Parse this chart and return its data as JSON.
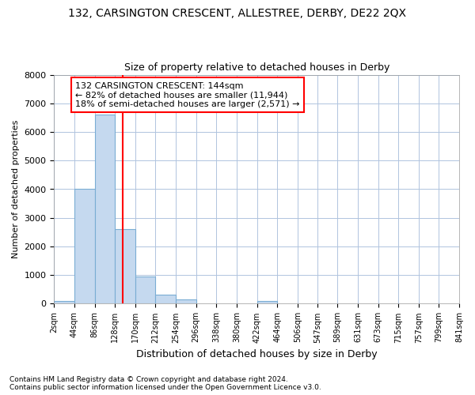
{
  "title1": "132, CARSINGTON CRESCENT, ALLESTREE, DERBY, DE22 2QX",
  "title2": "Size of property relative to detached houses in Derby",
  "xlabel": "Distribution of detached houses by size in Derby",
  "ylabel": "Number of detached properties",
  "footnote1": "Contains HM Land Registry data © Crown copyright and database right 2024.",
  "footnote2": "Contains public sector information licensed under the Open Government Licence v3.0.",
  "annotation_line1": "132 CARSINGTON CRESCENT: 144sqm",
  "annotation_line2": "← 82% of detached houses are smaller (11,944)",
  "annotation_line3": "18% of semi-detached houses are larger (2,571) →",
  "bin_edges": [
    2,
    44,
    86,
    128,
    170,
    212,
    254,
    296,
    338,
    380,
    422,
    464,
    506,
    547,
    589,
    631,
    673,
    715,
    757,
    799,
    841
  ],
  "bar_heights": [
    100,
    4000,
    6600,
    2600,
    950,
    320,
    150,
    0,
    0,
    0,
    100,
    0,
    0,
    0,
    0,
    0,
    0,
    0,
    0,
    0
  ],
  "bar_color": "#c5d9ef",
  "bar_edgecolor": "#7aadd4",
  "red_line_x": 144,
  "ylim": [
    0,
    8000
  ],
  "yticks": [
    0,
    1000,
    2000,
    3000,
    4000,
    5000,
    6000,
    7000,
    8000
  ],
  "tick_labels": [
    "2sqm",
    "44sqm",
    "86sqm",
    "128sqm",
    "170sqm",
    "212sqm",
    "254sqm",
    "296sqm",
    "338sqm",
    "380sqm",
    "422sqm",
    "464sqm",
    "506sqm",
    "547sqm",
    "589sqm",
    "631sqm",
    "673sqm",
    "715sqm",
    "757sqm",
    "799sqm",
    "841sqm"
  ],
  "background_color": "#ffffff",
  "grid_color": "#b0c4de",
  "title1_fontsize": 10,
  "title2_fontsize": 9,
  "annotation_fontsize": 8,
  "xlabel_fontsize": 9,
  "ylabel_fontsize": 8,
  "tick_fontsize": 7,
  "footnote_fontsize": 6.5
}
